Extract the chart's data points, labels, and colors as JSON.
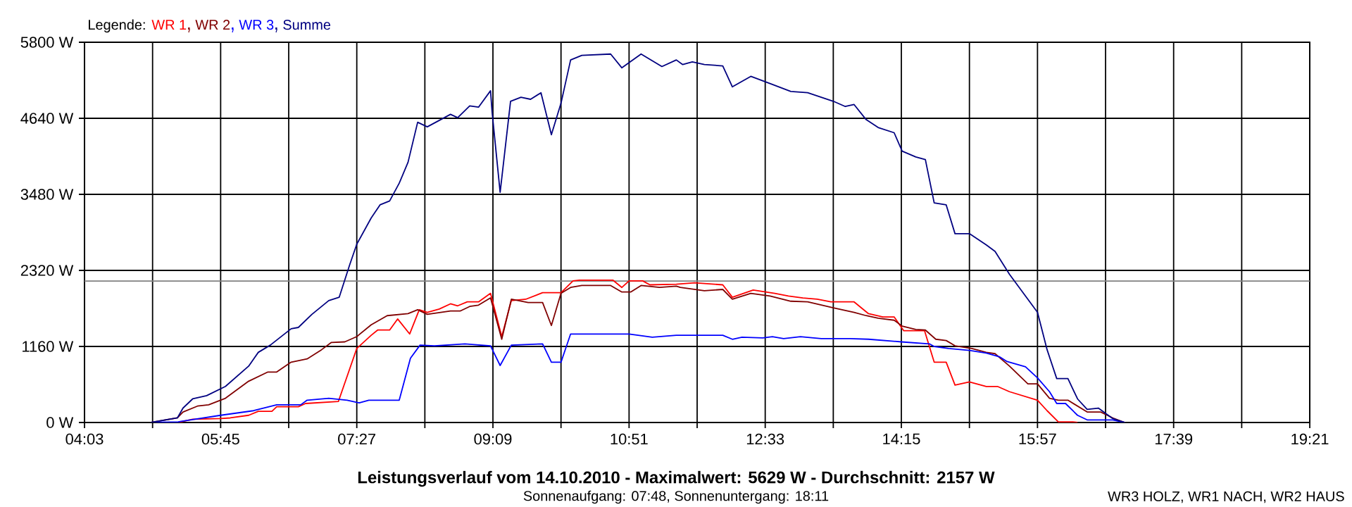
{
  "chart_data": {
    "type": "line",
    "title": "**Leistungsverlauf vom 14.10.2010 - Maximalwert: 5629 W - Durchschnitt: 2157 W**",
    "subtitle": "Sonnenaufgang: 07:48, Sonnenuntergang: 18:11",
    "legend_title": "Legende:",
    "annotations": [
      "WR3 HOLZ, WR1 NACH, WR2 HAUS"
    ],
    "legend": "top left",
    "grid": true,
    "line_style": "solid",
    "xlim": [
      4.05,
      19.35
    ],
    "ylim": [
      0,
      5800
    ],
    "xticks": [
      {
        "value": 4.05,
        "label": "04:03"
      },
      {
        "value": 4.9,
        "label": null
      },
      {
        "value": 5.75,
        "label": "05:45"
      },
      {
        "value": 6.6,
        "label": null
      },
      {
        "value": 7.45,
        "label": "07:27"
      },
      {
        "value": 8.3,
        "label": null
      },
      {
        "value": 9.15,
        "label": "09:09"
      },
      {
        "value": 10.0,
        "label": null
      },
      {
        "value": 10.85,
        "label": "10:51"
      },
      {
        "value": 11.7,
        "label": null
      },
      {
        "value": 12.55,
        "label": "12:33"
      },
      {
        "value": 13.4,
        "label": null
      },
      {
        "value": 14.25,
        "label": "14:15"
      },
      {
        "value": 15.1,
        "label": null
      },
      {
        "value": 15.95,
        "label": "15:57"
      },
      {
        "value": 16.8,
        "label": null
      },
      {
        "value": 17.65,
        "label": "17:39"
      },
      {
        "value": 18.5,
        "label": null
      },
      {
        "value": 19.35,
        "label": "19:21"
      }
    ],
    "yticks": [
      {
        "value": 0,
        "label": "0 W"
      },
      {
        "value": 1160,
        "label": "1160 W"
      },
      {
        "value": 2320,
        "label": "2320 W"
      },
      {
        "value": 3480,
        "label": "3480 W"
      },
      {
        "value": 4640,
        "label": "4640 W"
      },
      {
        "value": 5800,
        "label": "5800 W"
      }
    ],
    "ref_lines": [
      {
        "axis": "y",
        "value": 2157,
        "color": "#808080"
      }
    ],
    "series": [
      {
        "name": "WR 1",
        "color": "#ff0000",
        "x": [
          4.88,
          5.22,
          5.4,
          5.75,
          5.87,
          6.1,
          6.22,
          6.39,
          6.45,
          6.72,
          6.81,
          7.22,
          7.45,
          7.63,
          7.71,
          7.86,
          7.96,
          8.11,
          8.23,
          8.33,
          8.48,
          8.62,
          8.71,
          8.83,
          8.97,
          9.12,
          9.26,
          9.38,
          9.56,
          9.77,
          10.0,
          10.15,
          10.23,
          10.65,
          10.76,
          10.85,
          11.02,
          11.11,
          11.44,
          11.67,
          12.02,
          12.14,
          12.4,
          12.67,
          12.84,
          13.02,
          13.2,
          13.37,
          13.66,
          13.84,
          14.02,
          14.16,
          14.28,
          14.54,
          14.66,
          14.81,
          14.92,
          15.1,
          15.31,
          15.45,
          15.6,
          15.95,
          16.07,
          16.21,
          16.39,
          16.45
        ],
        "values": [
          0,
          0,
          50,
          60,
          70,
          110,
          170,
          170,
          240,
          240,
          290,
          320,
          1130,
          1330,
          1410,
          1410,
          1580,
          1350,
          1720,
          1680,
          1730,
          1810,
          1780,
          1840,
          1840,
          1970,
          1310,
          1860,
          1880,
          1980,
          1980,
          2160,
          2170,
          2170,
          2060,
          2160,
          2160,
          2100,
          2110,
          2130,
          2100,
          1910,
          2020,
          1970,
          1930,
          1900,
          1880,
          1840,
          1840,
          1660,
          1610,
          1610,
          1400,
          1400,
          920,
          920,
          570,
          620,
          550,
          550,
          470,
          340,
          180,
          10,
          10,
          0
        ]
      },
      {
        "name": "WR 2",
        "color": "#800000",
        "x": [
          4.88,
          5.21,
          5.28,
          5.46,
          5.6,
          5.81,
          6.1,
          6.34,
          6.45,
          6.63,
          6.83,
          7.01,
          7.13,
          7.3,
          7.45,
          7.63,
          7.83,
          8.09,
          8.21,
          8.33,
          8.62,
          8.74,
          8.86,
          8.97,
          9.12,
          9.26,
          9.38,
          9.59,
          9.77,
          9.88,
          10.0,
          10.12,
          10.26,
          10.62,
          10.76,
          10.87,
          11.0,
          11.23,
          11.44,
          11.49,
          11.79,
          12.02,
          12.14,
          12.37,
          12.61,
          12.87,
          13.08,
          13.4,
          13.66,
          13.81,
          13.96,
          14.16,
          14.26,
          14.43,
          14.55,
          14.68,
          14.81,
          14.92,
          15.13,
          15.31,
          15.42,
          15.6,
          15.83,
          15.95,
          16.1,
          16.21,
          16.33,
          16.57,
          16.74,
          16.89,
          17.04
        ],
        "values": [
          0,
          70,
          160,
          250,
          270,
          370,
          630,
          770,
          770,
          920,
          970,
          1110,
          1220,
          1230,
          1310,
          1490,
          1630,
          1660,
          1720,
          1650,
          1700,
          1700,
          1770,
          1790,
          1900,
          1270,
          1880,
          1830,
          1830,
          1480,
          1970,
          2060,
          2090,
          2090,
          1990,
          1990,
          2090,
          2060,
          2080,
          2060,
          2010,
          2030,
          1880,
          1970,
          1930,
          1850,
          1840,
          1750,
          1680,
          1630,
          1590,
          1560,
          1470,
          1420,
          1410,
          1270,
          1250,
          1170,
          1130,
          1070,
          1050,
          860,
          590,
          590,
          370,
          340,
          340,
          160,
          160,
          70,
          0
        ]
      },
      {
        "name": "WR 3",
        "color": "#0000ff",
        "x": [
          4.88,
          5.22,
          5.75,
          6.16,
          6.45,
          6.75,
          6.83,
          7.1,
          7.33,
          7.48,
          7.6,
          7.98,
          8.12,
          8.24,
          8.42,
          8.8,
          9.12,
          9.24,
          9.38,
          9.77,
          9.88,
          10.0,
          10.12,
          10.85,
          11.14,
          11.44,
          11.49,
          12.02,
          12.14,
          12.26,
          12.52,
          12.64,
          12.78,
          12.99,
          13.25,
          13.61,
          13.84,
          14.25,
          14.6,
          14.66,
          14.84,
          15.1,
          15.31,
          15.48,
          15.57,
          15.8,
          15.95,
          16.1,
          16.19,
          16.3,
          16.45,
          16.57,
          16.77,
          16.89,
          17.04
        ],
        "values": [
          0,
          10,
          110,
          180,
          270,
          270,
          340,
          370,
          340,
          300,
          340,
          340,
          980,
          1180,
          1170,
          1200,
          1170,
          870,
          1180,
          1200,
          920,
          920,
          1350,
          1350,
          1300,
          1330,
          1330,
          1330,
          1270,
          1300,
          1290,
          1310,
          1280,
          1310,
          1280,
          1280,
          1270,
          1230,
          1200,
          1160,
          1130,
          1100,
          1060,
          1000,
          930,
          850,
          680,
          470,
          290,
          290,
          110,
          40,
          40,
          40,
          0
        ]
      },
      {
        "name": "Summe",
        "color": "#000080",
        "x": [
          4.88,
          5.21,
          5.28,
          5.4,
          5.575,
          5.81,
          6.1,
          6.22,
          6.37,
          6.63,
          6.72,
          6.89,
          7.1,
          7.23,
          7.36,
          7.45,
          7.63,
          7.74,
          7.86,
          7.98,
          8.09,
          8.21,
          8.33,
          8.62,
          8.71,
          8.86,
          8.97,
          9.12,
          9.14,
          9.24,
          9.3,
          9.37,
          9.5,
          9.62,
          9.75,
          9.88,
          10.0,
          10.12,
          10.26,
          10.62,
          10.76,
          11.0,
          11.26,
          11.44,
          11.52,
          11.64,
          11.79,
          12.02,
          12.14,
          12.37,
          12.61,
          12.87,
          13.08,
          13.4,
          13.55,
          13.66,
          13.81,
          13.96,
          14.16,
          14.26,
          14.43,
          14.55,
          14.66,
          14.81,
          14.92,
          15.1,
          15.31,
          15.42,
          15.6,
          15.95,
          16.07,
          16.19,
          16.33,
          16.45,
          16.57,
          16.71,
          16.89,
          17.04
        ],
        "values": [
          0,
          70,
          220,
          360,
          410,
          550,
          860,
          1070,
          1180,
          1430,
          1450,
          1650,
          1860,
          1910,
          2400,
          2720,
          3120,
          3320,
          3380,
          3650,
          3970,
          4580,
          4510,
          4700,
          4650,
          4830,
          4810,
          5060,
          4730,
          3510,
          4150,
          4900,
          4960,
          4930,
          5030,
          4390,
          4870,
          5530,
          5600,
          5620,
          5410,
          5620,
          5430,
          5530,
          5460,
          5500,
          5460,
          5440,
          5120,
          5280,
          5170,
          5050,
          5030,
          4900,
          4820,
          4850,
          4620,
          4500,
          4420,
          4140,
          4050,
          4010,
          3350,
          3320,
          2880,
          2880,
          2710,
          2610,
          2260,
          1680,
          1110,
          670,
          670,
          360,
          200,
          220,
          60,
          0
        ]
      }
    ]
  }
}
